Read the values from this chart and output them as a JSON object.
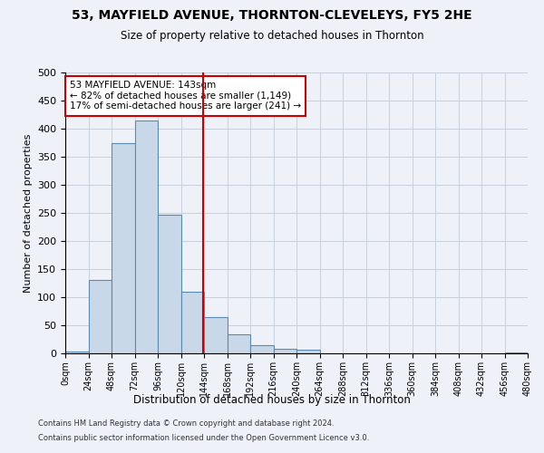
{
  "title1": "53, MAYFIELD AVENUE, THORNTON-CLEVELEYS, FY5 2HE",
  "title2": "Size of property relative to detached houses in Thornton",
  "xlabel": "Distribution of detached houses by size in Thornton",
  "ylabel": "Number of detached properties",
  "footer1": "Contains HM Land Registry data © Crown copyright and database right 2024.",
  "footer2": "Contains public sector information licensed under the Open Government Licence v3.0.",
  "property_label": "53 MAYFIELD AVENUE: 143sqm",
  "annotation_line1": "← 82% of detached houses are smaller (1,149)",
  "annotation_line2": "17% of semi-detached houses are larger (241) →",
  "property_size_sqm": 143,
  "bin_width": 24,
  "num_bins": 20,
  "bar_values": [
    3,
    130,
    375,
    415,
    247,
    110,
    65,
    34,
    14,
    8,
    6,
    0,
    0,
    0,
    0,
    0,
    0,
    0,
    0,
    2
  ],
  "bar_color": "#c8d8e8",
  "bar_edge_color": "#5a8ab0",
  "vline_color": "#cc0000",
  "annotation_box_color": "#cc0000",
  "grid_color": "#c8d0dc",
  "bg_color": "#eef2f8",
  "ylim": [
    0,
    500
  ],
  "yticks": [
    0,
    50,
    100,
    150,
    200,
    250,
    300,
    350,
    400,
    450,
    500
  ],
  "figwidth": 6.0,
  "figheight": 5.0,
  "dpi": 100
}
